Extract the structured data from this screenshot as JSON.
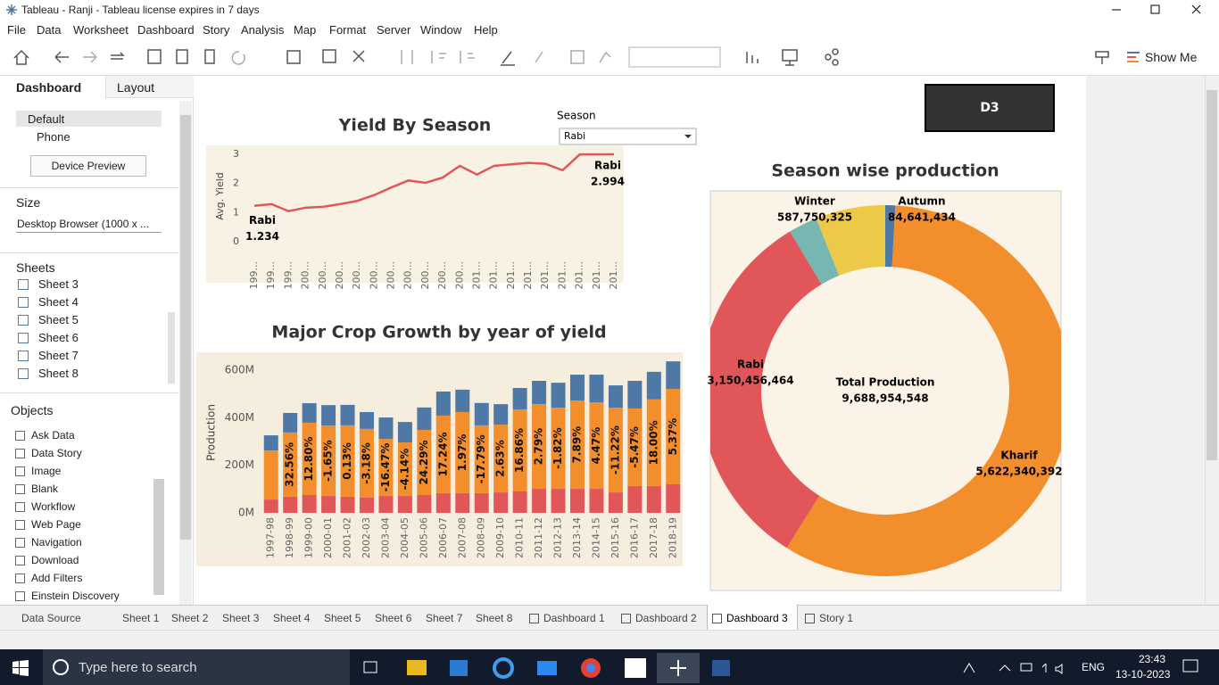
{
  "window_title": "Tableau - Ranji - Tableau license expires in 7 days",
  "menu": [
    "File",
    "Data",
    "Worksheet",
    "Dashboard",
    "Story",
    "Analysis",
    "Map",
    "Format",
    "Server",
    "Window",
    "Help"
  ],
  "toolbar": {
    "show_me": "Show Me"
  },
  "side_pane": {
    "tabs": [
      "Dashboard",
      "Layout"
    ],
    "devices": [
      "Default",
      "Phone"
    ],
    "device_preview": "Device Preview",
    "size_heading": "Size",
    "size_value": "Desktop Browser (1000 x ...",
    "sheets_heading": "Sheets",
    "sheets": [
      "Sheet 3",
      "Sheet 4",
      "Sheet 5",
      "Sheet 6",
      "Sheet 7",
      "Sheet 8"
    ],
    "objects_heading": "Objects",
    "objects": [
      "Ask Data",
      "Data Story",
      "Image",
      "Blank",
      "Workflow",
      "Web Page",
      "Navigation",
      "Download",
      "Add Filters",
      "Einstein Discovery"
    ]
  },
  "dashboard": {
    "title_button": "D3",
    "filter": {
      "label": "Season",
      "value": "Rabi"
    }
  },
  "chart_data": [
    {
      "type": "line",
      "title": "Yield By Season",
      "y_label": "Avg. Yield",
      "categories": [
        "199...",
        "199...",
        "199...",
        "200...",
        "200...",
        "200...",
        "200...",
        "200...",
        "200...",
        "200...",
        "200...",
        "200...",
        "200...",
        "201...",
        "201...",
        "201...",
        "201...",
        "201...",
        "201...",
        "201...",
        "201...",
        "201..."
      ],
      "series": [
        {
          "name": "Rabi",
          "color": "#e15759",
          "values": [
            1.234,
            1.29,
            1.05,
            1.17,
            1.2,
            1.29,
            1.4,
            1.6,
            1.86,
            2.1,
            2.02,
            2.2,
            2.6,
            2.3,
            2.6,
            2.65,
            2.7,
            2.67,
            2.45,
            2.99,
            2.99,
            2.994
          ]
        }
      ],
      "label_ends": true,
      "ylim": [
        -0.3,
        3.3
      ],
      "yticks": [
        0,
        1,
        2,
        3
      ],
      "grid": false
    },
    {
      "type": "bar",
      "stacked": true,
      "title": "Major Crop Growth by year of yield",
      "y_label": "Production",
      "categories": [
        "1997-98",
        "1998-99",
        "1999-00",
        "2000-01",
        "2001-02",
        "2002-03",
        "2003-04",
        "2004-05",
        "2005-06",
        "2006-07",
        "2007-08",
        "2008-09",
        "2009-10",
        "2010-11",
        "2011-12",
        "2012-13",
        "2013-14",
        "2014-15",
        "2015-16",
        "2016-17",
        "2017-18",
        "2018-19"
      ],
      "series": [
        {
          "color": "#e15759",
          "values": [
            56,
            68,
            75,
            71,
            68,
            64,
            71,
            71,
            75,
            83,
            83,
            83,
            86,
            90,
            101,
            101,
            101,
            101,
            86,
            113,
            113,
            120
          ]
        },
        {
          "color": "#f28e2b",
          "values": [
            206,
            270,
            304,
            296,
            300,
            289,
            240,
            225,
            274,
            326,
            341,
            285,
            285,
            345,
            356,
            341,
            371,
            364,
            356,
            326,
            364,
            401
          ]
        },
        {
          "color": "#4e79a7",
          "values": [
            64,
            82,
            82,
            86,
            86,
            71,
            90,
            86,
            94,
            101,
            94,
            94,
            86,
            90,
            98,
            105,
            109,
            116,
            94,
            116,
            116,
            116
          ]
        }
      ],
      "annotations": [
        null,
        "32.56%",
        "12.80%",
        "-1.65%",
        "0.13%",
        "-3.18%",
        "-16.47%",
        "-4.14%",
        "24.29%",
        "17.24%",
        "1.97%",
        "-17.79%",
        "2.63%",
        "16.86%",
        "2.79%",
        "-1.82%",
        "7.89%",
        "4.47%",
        "-11.22%",
        "-5.47%",
        "18.00%",
        "5.37%"
      ],
      "ylim": [
        0,
        660
      ],
      "yticks": [
        {
          "value": 0,
          "label": "0M"
        },
        {
          "value": 200,
          "label": "200M"
        },
        {
          "value": 400,
          "label": "400M"
        },
        {
          "value": 600,
          "label": "600M"
        }
      ],
      "grid": false
    },
    {
      "type": "pie",
      "donut": true,
      "title": "Season wise production",
      "categories": [
        "Autumn",
        "Kharif",
        "Rabi",
        null,
        "Winter"
      ],
      "values": [
        84641434,
        5622340392,
        3150456464,
        243765933,
        587750325
      ],
      "value_labels": [
        "84,641,434",
        "5,622,340,392",
        "3,150,456,464",
        null,
        "587,750,325"
      ],
      "colors": [
        "#4e79a7",
        "#f28e2b",
        "#e15759",
        "#76b7b2",
        "#edc948"
      ],
      "center_text": [
        "Total Production",
        "9,688,954,548"
      ]
    }
  ],
  "tabs": [
    "Data Source",
    "Sheet 1",
    "Sheet 2",
    "Sheet 3",
    "Sheet 4",
    "Sheet 5",
    "Sheet 6",
    "Sheet 7",
    "Sheet 8",
    "Dashboard 1",
    "Dashboard 2",
    "Dashboard 3",
    "Story 1"
  ],
  "taskbar": {
    "search": "Type here to search",
    "language": "ENG",
    "time": "23:43",
    "date": "13-10-2023"
  }
}
